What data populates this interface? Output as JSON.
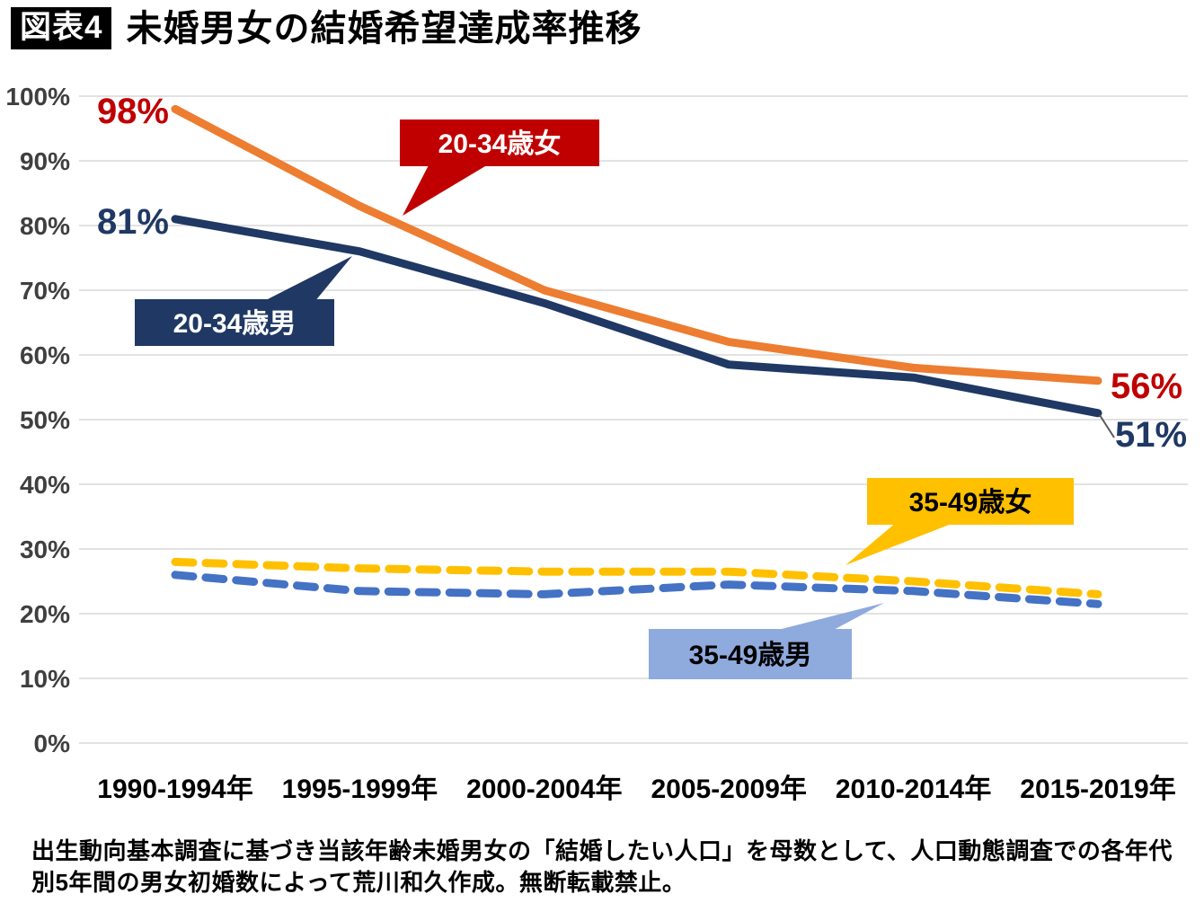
{
  "header": {
    "badge": "図表4",
    "title": "未婚男女の結婚希望達成率推移"
  },
  "chart_data": {
    "type": "line",
    "title": "未婚男女の結婚希望達成率推移",
    "xlabel": "",
    "ylabel": "",
    "ylim": [
      0,
      100
    ],
    "grid": true,
    "legend_position": "callout-boxes-on-plot",
    "categories": [
      "1990-1994年",
      "1995-1999年",
      "2000-2004年",
      "2005-2009年",
      "2010-2014年",
      "2015-2019年"
    ],
    "y_ticks": [
      "0%",
      "10%",
      "20%",
      "30%",
      "40%",
      "50%",
      "60%",
      "70%",
      "80%",
      "90%",
      "100%"
    ],
    "series": [
      {
        "name": "20-34歳男",
        "color": "#1F3864",
        "style": "solid",
        "values": [
          81,
          76,
          68,
          58.5,
          56.5,
          51
        ]
      },
      {
        "name": "20-34歳女",
        "color": "#ED7D31",
        "style": "solid",
        "values": [
          98,
          83,
          70,
          62,
          58,
          56
        ]
      },
      {
        "name": "35-49歳男",
        "color": "#4472C4",
        "style": "dashed",
        "values": [
          26,
          23.5,
          23,
          24.5,
          23.5,
          21.5
        ]
      },
      {
        "name": "35-49歳女",
        "color": "#FFC000",
        "style": "dashed",
        "values": [
          28,
          27,
          26.5,
          26.5,
          25,
          23
        ]
      }
    ],
    "annotations": [
      {
        "text": "98%",
        "color": "#C00000"
      },
      {
        "text": "81%",
        "color": "#1F3864"
      },
      {
        "text": "56%",
        "color": "#C00000"
      },
      {
        "text": "51%",
        "color": "#1F3864"
      }
    ],
    "callouts": [
      {
        "label": "20-34歳女",
        "bg": "#C00000",
        "fg": "#FFFFFF"
      },
      {
        "label": "20-34歳男",
        "bg": "#1F3864",
        "fg": "#FFFFFF"
      },
      {
        "label": "35-49歳女",
        "bg": "#FFC000",
        "fg": "#000000"
      },
      {
        "label": "35-49歳男",
        "bg": "#8FAADC",
        "fg": "#000000"
      }
    ],
    "colors": {
      "gridline": "#D9D9D9",
      "y_tick_label": "#3F3F3F",
      "x_tick_label": "#000000"
    }
  },
  "footer": {
    "lines": [
      "出生動向基本調査に基づき当該年齢未婚男女の「結婚したい人口」を母数として、人口動態調査での各年代",
      "別5年間の男女初婚数によって荒川和久作成。無断転載禁止。"
    ]
  }
}
